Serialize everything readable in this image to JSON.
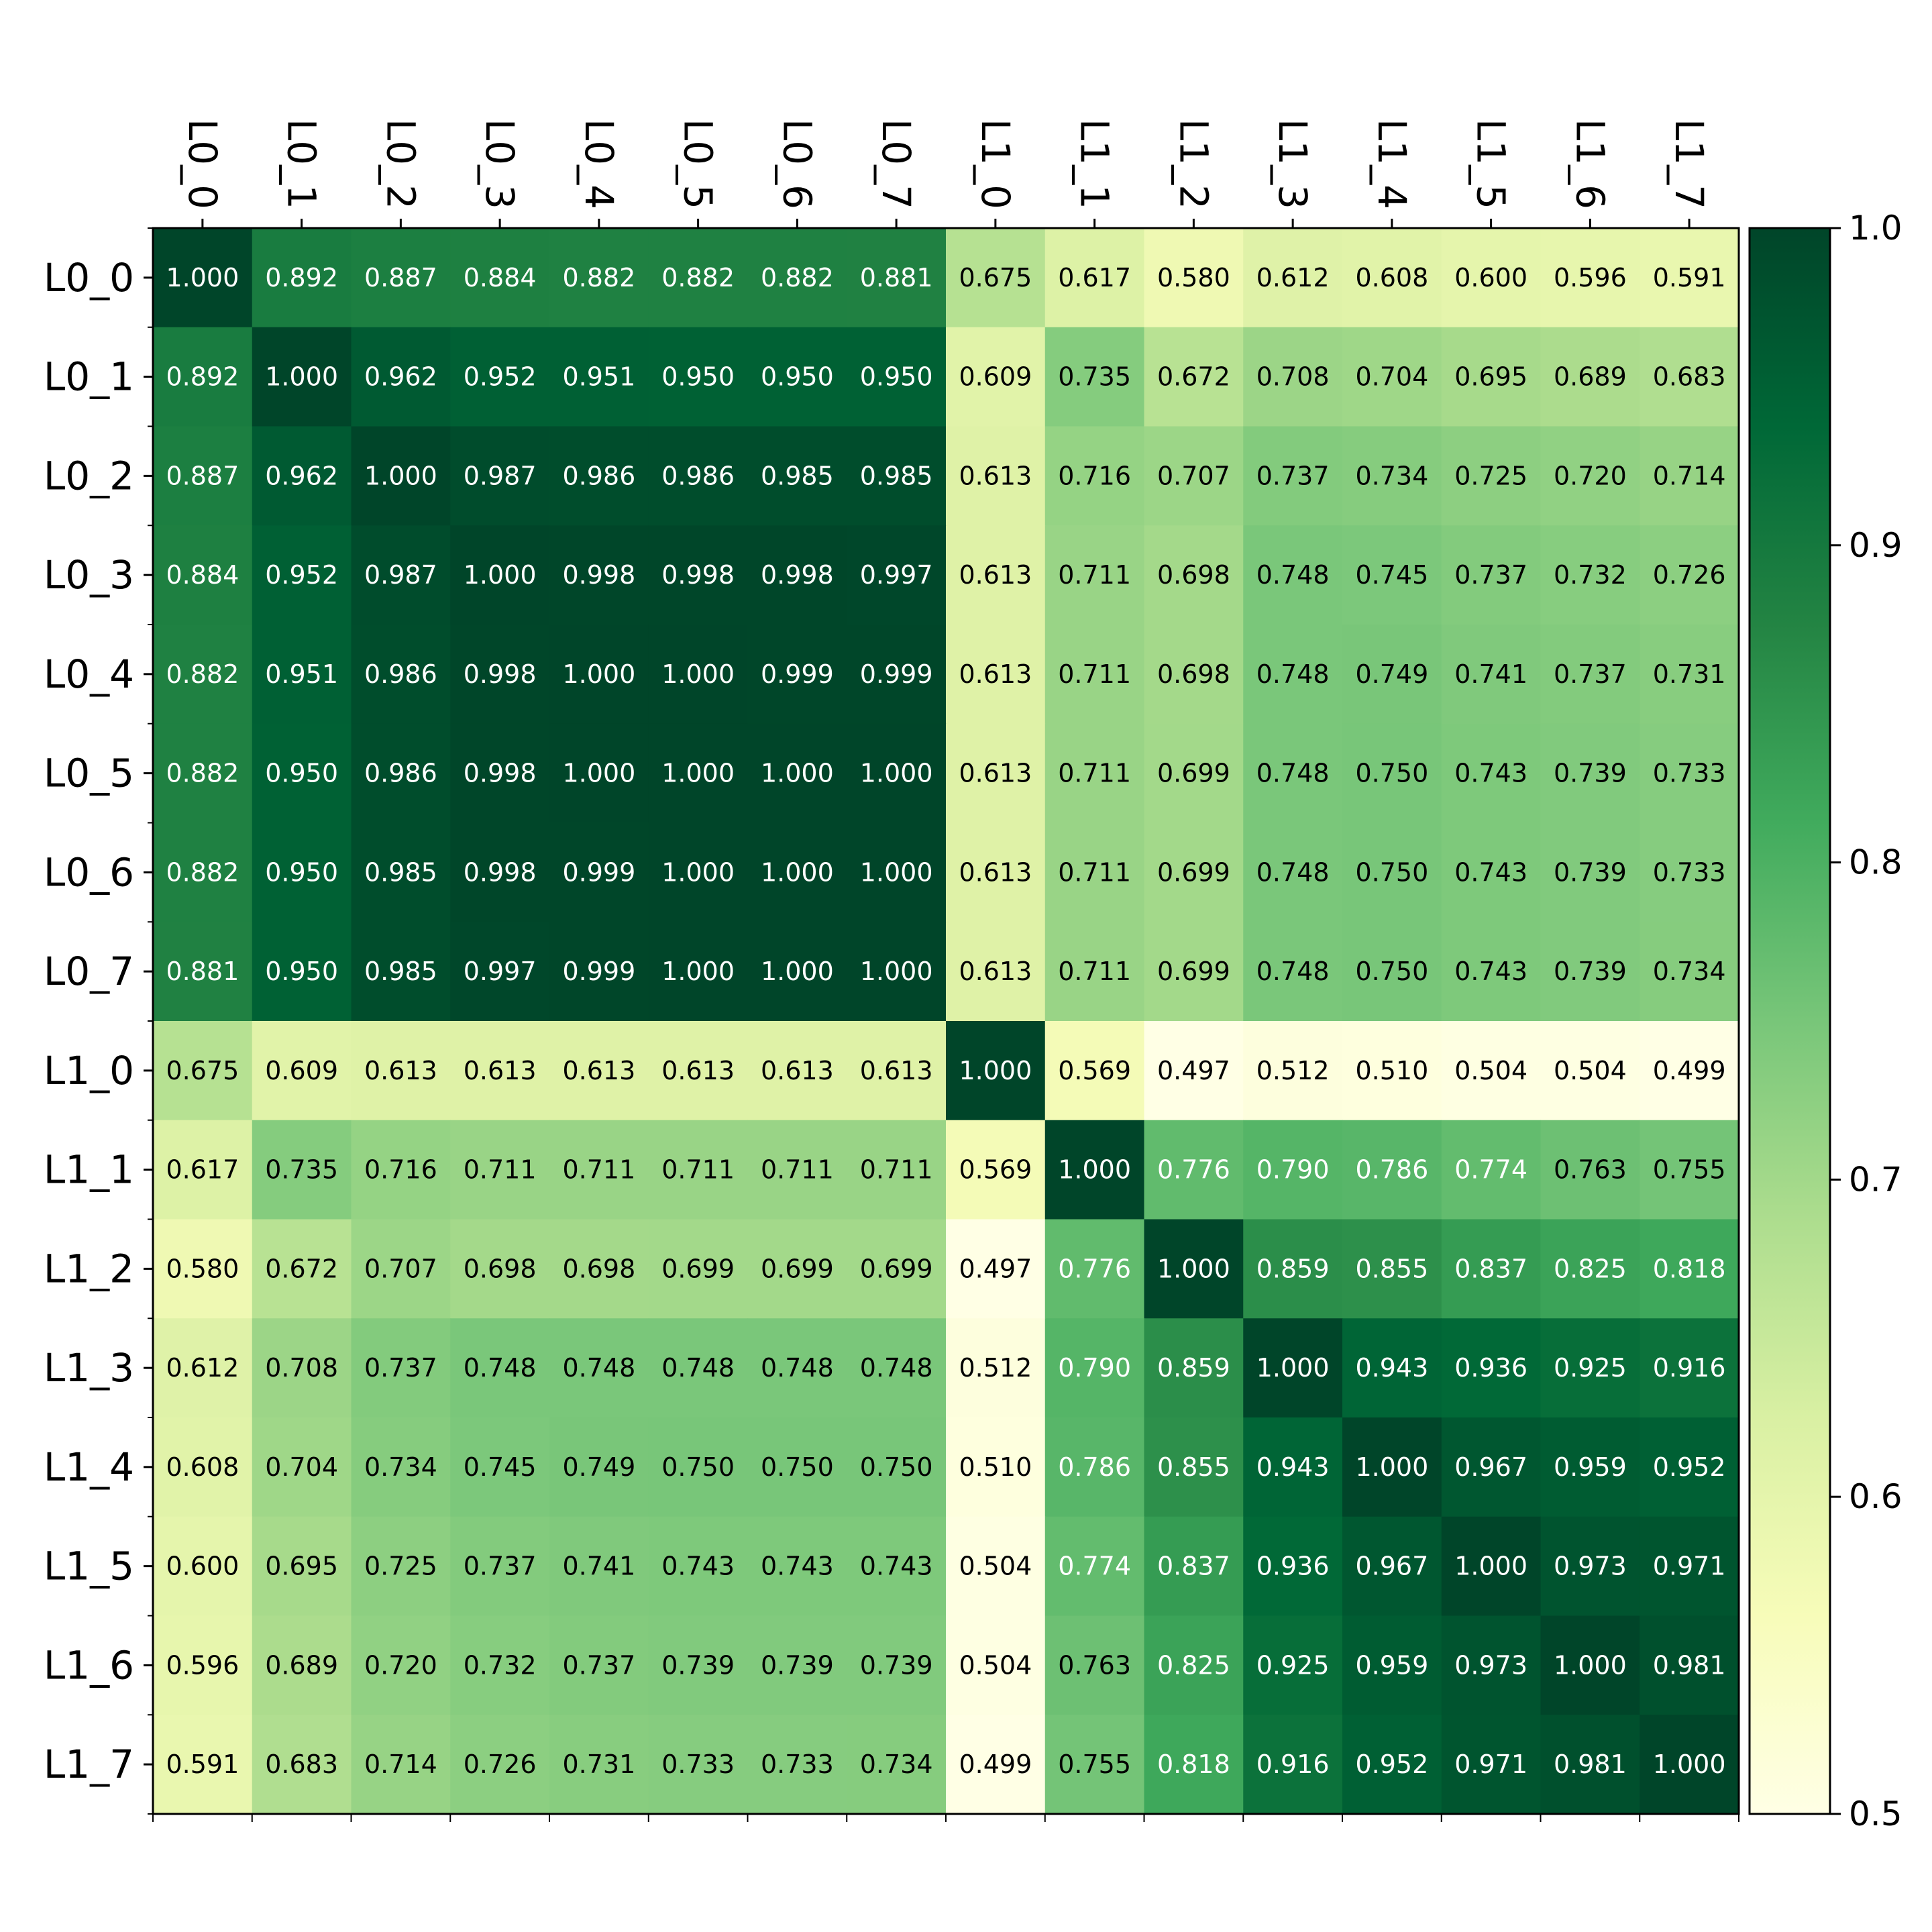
{
  "chart_data": {
    "type": "heatmap",
    "title": "",
    "xlabel": "",
    "ylabel": "",
    "x_labels": [
      "L0_0",
      "L0_1",
      "L0_2",
      "L0_3",
      "L0_4",
      "L0_5",
      "L0_6",
      "L0_7",
      "L1_0",
      "L1_1",
      "L1_2",
      "L1_3",
      "L1_4",
      "L1_5",
      "L1_6",
      "L1_7"
    ],
    "y_labels": [
      "L0_0",
      "L0_1",
      "L0_2",
      "L0_3",
      "L0_4",
      "L0_5",
      "L0_6",
      "L0_7",
      "L1_0",
      "L1_1",
      "L1_2",
      "L1_3",
      "L1_4",
      "L1_5",
      "L1_6",
      "L1_7"
    ],
    "x_labels_position": "top",
    "x_labels_rotation": 90,
    "value_format": "0.000",
    "colormap": "YlGn",
    "color_range": [
      0.5,
      1.0
    ],
    "colorbar": {
      "position": "right",
      "ticks": [
        "1.0",
        "0.9",
        "0.8",
        "0.7",
        "0.6",
        "0.5"
      ],
      "tick_values": [
        1.0,
        0.9,
        0.8,
        0.7,
        0.6,
        0.5
      ]
    },
    "values": [
      [
        1.0,
        0.892,
        0.887,
        0.884,
        0.882,
        0.882,
        0.882,
        0.881,
        0.675,
        0.617,
        0.58,
        0.612,
        0.608,
        0.6,
        0.596,
        0.591
      ],
      [
        0.892,
        1.0,
        0.962,
        0.952,
        0.951,
        0.95,
        0.95,
        0.95,
        0.609,
        0.735,
        0.672,
        0.708,
        0.704,
        0.695,
        0.689,
        0.683
      ],
      [
        0.887,
        0.962,
        1.0,
        0.987,
        0.986,
        0.986,
        0.985,
        0.985,
        0.613,
        0.716,
        0.707,
        0.737,
        0.734,
        0.725,
        0.72,
        0.714
      ],
      [
        0.884,
        0.952,
        0.987,
        1.0,
        0.998,
        0.998,
        0.998,
        0.997,
        0.613,
        0.711,
        0.698,
        0.748,
        0.745,
        0.737,
        0.732,
        0.726
      ],
      [
        0.882,
        0.951,
        0.986,
        0.998,
        1.0,
        1.0,
        0.999,
        0.999,
        0.613,
        0.711,
        0.698,
        0.748,
        0.749,
        0.741,
        0.737,
        0.731
      ],
      [
        0.882,
        0.95,
        0.986,
        0.998,
        1.0,
        1.0,
        1.0,
        1.0,
        0.613,
        0.711,
        0.699,
        0.748,
        0.75,
        0.743,
        0.739,
        0.733
      ],
      [
        0.882,
        0.95,
        0.985,
        0.998,
        0.999,
        1.0,
        1.0,
        1.0,
        0.613,
        0.711,
        0.699,
        0.748,
        0.75,
        0.743,
        0.739,
        0.733
      ],
      [
        0.881,
        0.95,
        0.985,
        0.997,
        0.999,
        1.0,
        1.0,
        1.0,
        0.613,
        0.711,
        0.699,
        0.748,
        0.75,
        0.743,
        0.739,
        0.734
      ],
      [
        0.675,
        0.609,
        0.613,
        0.613,
        0.613,
        0.613,
        0.613,
        0.613,
        1.0,
        0.569,
        0.497,
        0.512,
        0.51,
        0.504,
        0.504,
        0.499
      ],
      [
        0.617,
        0.735,
        0.716,
        0.711,
        0.711,
        0.711,
        0.711,
        0.711,
        0.569,
        1.0,
        0.776,
        0.79,
        0.786,
        0.774,
        0.763,
        0.755
      ],
      [
        0.58,
        0.672,
        0.707,
        0.698,
        0.698,
        0.699,
        0.699,
        0.699,
        0.497,
        0.776,
        1.0,
        0.859,
        0.855,
        0.837,
        0.825,
        0.818
      ],
      [
        0.612,
        0.708,
        0.737,
        0.748,
        0.748,
        0.748,
        0.748,
        0.748,
        0.512,
        0.79,
        0.859,
        1.0,
        0.943,
        0.936,
        0.925,
        0.916
      ],
      [
        0.608,
        0.704,
        0.734,
        0.745,
        0.749,
        0.75,
        0.75,
        0.75,
        0.51,
        0.786,
        0.855,
        0.943,
        1.0,
        0.967,
        0.959,
        0.952
      ],
      [
        0.6,
        0.695,
        0.725,
        0.737,
        0.741,
        0.743,
        0.743,
        0.743,
        0.504,
        0.774,
        0.837,
        0.936,
        0.967,
        1.0,
        0.973,
        0.971
      ],
      [
        0.596,
        0.689,
        0.72,
        0.732,
        0.737,
        0.739,
        0.739,
        0.739,
        0.504,
        0.763,
        0.825,
        0.925,
        0.959,
        0.973,
        1.0,
        0.981
      ],
      [
        0.591,
        0.683,
        0.714,
        0.726,
        0.731,
        0.733,
        0.733,
        0.734,
        0.499,
        0.755,
        0.818,
        0.916,
        0.952,
        0.971,
        0.981,
        1.0
      ]
    ]
  }
}
